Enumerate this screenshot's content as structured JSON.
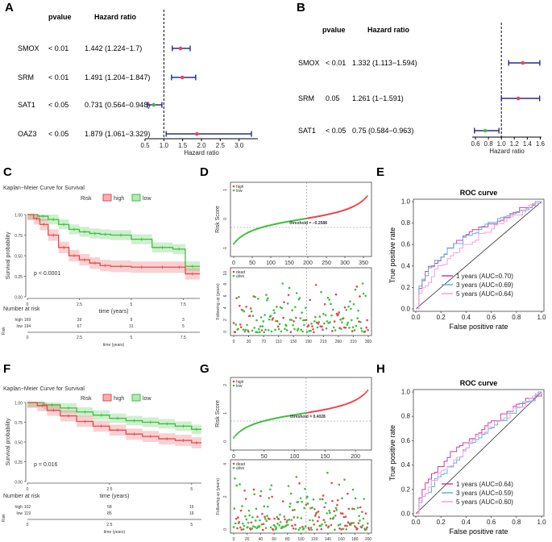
{
  "panels": {
    "A": "A",
    "B": "B",
    "C": "C",
    "D": "D",
    "E": "E",
    "F": "F",
    "G": "G",
    "H": "H"
  },
  "colors": {
    "high": "#e8474c",
    "low": "#3cbf3c",
    "ci_line": "#2c2c8c",
    "point": "#e8474c",
    "point_low": "#3cbf3c",
    "roc1": "#d63a9f",
    "roc3": "#5ab4e5",
    "roc5": "#f2a0e0"
  },
  "chart_data": [
    {
      "id": "A",
      "type": "forest",
      "headers": {
        "pvalue": "pvalue",
        "hr": "Hazard ratio"
      },
      "xlabel": "Hazard ratio",
      "xlim": [
        0.5,
        3.5
      ],
      "xticks": [
        "0.5",
        "1.0",
        "1.5",
        "2.0",
        "2.5",
        "3.0"
      ],
      "rows": [
        {
          "gene": "SMOX",
          "p": "< 0.01",
          "hr_text": "1.442 (1.224−1.7)",
          "hr": 1.442,
          "lo": 1.224,
          "hi": 1.7
        },
        {
          "gene": "SRM",
          "p": "< 0.01",
          "hr_text": "1.491 (1.204−1.847)",
          "hr": 1.491,
          "lo": 1.204,
          "hi": 1.847
        },
        {
          "gene": "SAT1",
          "p": "< 0.05",
          "hr_text": "0.731 (0.564−0.948)",
          "hr": 0.731,
          "lo": 0.564,
          "hi": 0.948
        },
        {
          "gene": "OAZ3",
          "p": "< 0.05",
          "hr_text": "1.879 (1.061−3.329)",
          "hr": 1.879,
          "lo": 1.061,
          "hi": 3.329
        }
      ]
    },
    {
      "id": "B",
      "type": "forest",
      "headers": {
        "pvalue": "pvalue",
        "hr": "Hazard ratio"
      },
      "xlabel": "Hazard ratio",
      "xlim": [
        0.55,
        1.62
      ],
      "xticks": [
        "0.6",
        "0.8",
        "1.0",
        "1.2",
        "1.4",
        "1.6"
      ],
      "rows": [
        {
          "gene": "SMOX",
          "p": "< 0.01",
          "hr_text": "1.332 (1.113−1.594)",
          "hr": 1.332,
          "lo": 1.113,
          "hi": 1.594
        },
        {
          "gene": "SRM",
          "p": "0.05",
          "hr_text": "1.261 (1−1.591)",
          "hr": 1.261,
          "lo": 1.0,
          "hi": 1.591
        },
        {
          "gene": "SAT1",
          "p": "< 0.05",
          "hr_text": "0.75 (0.584−0.963)",
          "hr": 0.75,
          "lo": 0.584,
          "hi": 0.963
        }
      ]
    },
    {
      "id": "C",
      "type": "kaplan-meier",
      "title": "Kaplan−Meier Curve for Survival",
      "legend": {
        "label": "Risk",
        "high": "high",
        "low": "low"
      },
      "ylabel": "Survival probability",
      "xlabel": "time (years)",
      "yticks": [
        "0.00",
        "0.25",
        "0.50",
        "0.75",
        "1.00"
      ],
      "xticks": [
        "0",
        "2.5",
        "5",
        "7.5"
      ],
      "pvalue": "p < 0.0001",
      "xmax": 8.3,
      "high_curve": [
        [
          0,
          1.0
        ],
        [
          0.3,
          0.95
        ],
        [
          0.6,
          0.88
        ],
        [
          1.0,
          0.75
        ],
        [
          1.5,
          0.6
        ],
        [
          2.0,
          0.5
        ],
        [
          2.5,
          0.45
        ],
        [
          3.0,
          0.41
        ],
        [
          3.5,
          0.38
        ],
        [
          4.0,
          0.37
        ],
        [
          5.0,
          0.36
        ],
        [
          6.0,
          0.36
        ],
        [
          7.0,
          0.36
        ],
        [
          7.6,
          0.36
        ],
        [
          7.6,
          0.28
        ],
        [
          8.3,
          0.28
        ]
      ],
      "low_curve": [
        [
          0,
          1.0
        ],
        [
          0.5,
          0.98
        ],
        [
          1.0,
          0.94
        ],
        [
          1.5,
          0.88
        ],
        [
          2.0,
          0.82
        ],
        [
          2.5,
          0.79
        ],
        [
          3.0,
          0.77
        ],
        [
          3.5,
          0.76
        ],
        [
          4.0,
          0.75
        ],
        [
          5.0,
          0.7
        ],
        [
          6.0,
          0.6
        ],
        [
          7.0,
          0.58
        ],
        [
          7.6,
          0.5
        ],
        [
          7.6,
          0.37
        ],
        [
          8.3,
          0.37
        ]
      ],
      "risk_table": {
        "title": "Number at risk",
        "risk_label": "Risk",
        "high_label": "high",
        "low_label": "low",
        "high": [
          "169",
          "39",
          "9",
          "3"
        ],
        "low": [
          "194",
          "67",
          "31",
          "5"
        ],
        "xlabel": "time (years)",
        "xticks": [
          "0",
          "2.5",
          "5",
          "7.5"
        ]
      }
    },
    {
      "id": "D",
      "type": "risk-score",
      "top_ylabel": "Risk Score",
      "bottom_ylabel": "Following up (years)",
      "threshold_label": "threshold = −0.2588",
      "legend_top": [
        "high",
        "low"
      ],
      "legend_bottom": [
        "dead",
        "alive"
      ],
      "n": 363,
      "cutoff": 197,
      "top_xticks": [
        "0",
        "50",
        "100",
        "150",
        "200",
        "250",
        "300",
        "350"
      ],
      "top_yticks": [
        "-1",
        "0",
        "1"
      ],
      "bottom_xticks": [
        "0",
        "30",
        "70",
        "110",
        "150",
        "190",
        "210",
        "260",
        "310",
        "360"
      ],
      "bottom_yticks": [
        "0",
        "2",
        "4",
        "6",
        "8",
        "10"
      ]
    },
    {
      "id": "E",
      "type": "roc",
      "title": "ROC curve",
      "xlabel": "False positive rate",
      "ylabel": "True positive rate",
      "ticks": [
        "0.0",
        "0.2",
        "0.4",
        "0.6",
        "0.8",
        "1.0"
      ],
      "series": [
        {
          "name": "1 years (AUC=0.70)",
          "auc": 0.7
        },
        {
          "name": "3 years (AUC=0.69)",
          "auc": 0.69
        },
        {
          "name": "5 years (AUC=0.64)",
          "auc": 0.64
        }
      ]
    },
    {
      "id": "F",
      "type": "kaplan-meier",
      "title": "Kaplan−Meier Curve for Survival",
      "legend": {
        "label": "Risk",
        "high": "high",
        "low": "low"
      },
      "ylabel": "Survival probability",
      "xlabel": "time (years)",
      "yticks": [
        "0.00",
        "0.25",
        "0.50",
        "0.75",
        "1.00"
      ],
      "xticks": [
        "0",
        "2.5",
        "5"
      ],
      "pvalue": "p = 0.016",
      "xmax": 5.3,
      "high_curve": [
        [
          0,
          1.0
        ],
        [
          0.3,
          0.96
        ],
        [
          0.6,
          0.9
        ],
        [
          1.0,
          0.83
        ],
        [
          1.5,
          0.76
        ],
        [
          2.0,
          0.7
        ],
        [
          2.5,
          0.65
        ],
        [
          3.0,
          0.6
        ],
        [
          3.5,
          0.57
        ],
        [
          4.0,
          0.54
        ],
        [
          4.5,
          0.52
        ],
        [
          5.0,
          0.49
        ],
        [
          5.3,
          0.49
        ]
      ],
      "low_curve": [
        [
          0,
          1.0
        ],
        [
          0.5,
          0.97
        ],
        [
          1.0,
          0.93
        ],
        [
          1.5,
          0.88
        ],
        [
          2.0,
          0.84
        ],
        [
          2.5,
          0.8
        ],
        [
          3.0,
          0.77
        ],
        [
          3.5,
          0.75
        ],
        [
          4.0,
          0.73
        ],
        [
          4.5,
          0.7
        ],
        [
          5.0,
          0.66
        ],
        [
          5.3,
          0.66
        ]
      ],
      "risk_table": {
        "title": "Number at risk",
        "risk_label": "Risk",
        "high_label": "high",
        "low_label": "low",
        "high": [
          "102",
          "58",
          "16"
        ],
        "low": [
          "119",
          "85",
          "16"
        ],
        "xlabel": "time (years)",
        "xticks": [
          "0",
          "2.5",
          "5"
        ]
      }
    },
    {
      "id": "G",
      "type": "risk-score",
      "top_ylabel": "Risk Score",
      "bottom_ylabel": "Following up (years)",
      "threshold_label": "threshold = 0.4028",
      "legend_top": [
        "high",
        "low"
      ],
      "legend_bottom": [
        "dead",
        "alive"
      ],
      "n": 221,
      "cutoff": 119,
      "top_xticks": [
        "0",
        "50",
        "100",
        "150",
        "200"
      ],
      "top_yticks": [
        "0",
        "1",
        "2"
      ],
      "bottom_xticks": [
        "0",
        "20",
        "40",
        "60",
        "80",
        "100",
        "120",
        "140",
        "160",
        "180",
        "200"
      ],
      "bottom_yticks": [
        "0",
        "2",
        "4"
      ]
    },
    {
      "id": "H",
      "type": "roc",
      "title": "ROC curve",
      "xlabel": "False positive rate",
      "ylabel": "True positive rate",
      "ticks": [
        "0.0",
        "0.2",
        "0.4",
        "0.6",
        "0.8",
        "1.0"
      ],
      "series": [
        {
          "name": "1 years (AUC=0.64)",
          "auc": 0.64
        },
        {
          "name": "3 years (AUC=0.59)",
          "auc": 0.59
        },
        {
          "name": "5 years (AUC=0.60)",
          "auc": 0.6
        }
      ]
    }
  ]
}
